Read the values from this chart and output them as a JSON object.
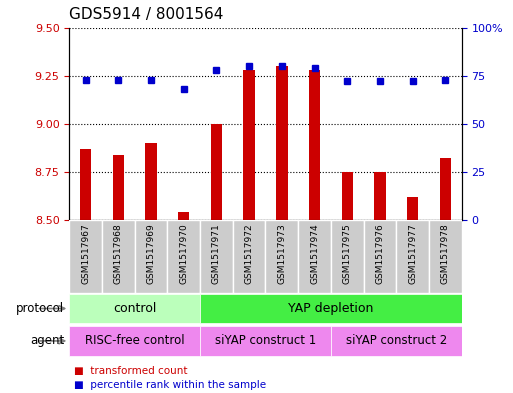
{
  "title": "GDS5914 / 8001564",
  "samples": [
    "GSM1517967",
    "GSM1517968",
    "GSM1517969",
    "GSM1517970",
    "GSM1517971",
    "GSM1517972",
    "GSM1517973",
    "GSM1517974",
    "GSM1517975",
    "GSM1517976",
    "GSM1517977",
    "GSM1517978"
  ],
  "red_values": [
    8.87,
    8.84,
    8.9,
    8.54,
    9.0,
    9.28,
    9.3,
    9.28,
    8.75,
    8.75,
    8.62,
    8.82
  ],
  "blue_values": [
    73,
    73,
    73,
    68,
    78,
    80,
    80,
    79,
    72,
    72,
    72,
    73
  ],
  "ylim_left": [
    8.5,
    9.5
  ],
  "ylim_right": [
    0,
    100
  ],
  "yticks_left": [
    8.5,
    8.75,
    9.0,
    9.25,
    9.5
  ],
  "yticks_right": [
    0,
    25,
    50,
    75,
    100
  ],
  "ytick_labels_right": [
    "0",
    "25",
    "50",
    "75",
    "100%"
  ],
  "bar_color": "#cc0000",
  "dot_color": "#0000cc",
  "bar_width": 0.35,
  "protocol_groups": [
    {
      "label": "control",
      "start": 0,
      "end": 3,
      "color": "#bbffbb"
    },
    {
      "label": "YAP depletion",
      "start": 4,
      "end": 11,
      "color": "#44ee44"
    }
  ],
  "agent_groups": [
    {
      "label": "RISC-free control",
      "start": 0,
      "end": 3,
      "color": "#ee88ee"
    },
    {
      "label": "siYAP construct 1",
      "start": 4,
      "end": 7,
      "color": "#ee88ee"
    },
    {
      "label": "siYAP construct 2",
      "start": 8,
      "end": 11,
      "color": "#ee88ee"
    }
  ],
  "protocol_label": "protocol",
  "agent_label": "agent",
  "legend_red": "transformed count",
  "legend_blue": "percentile rank within the sample",
  "background_color": "#ffffff",
  "tick_label_color_left": "#cc0000",
  "tick_label_color_right": "#0000cc",
  "plot_bg_color": "#ffffff",
  "box_bg_color": "#cccccc"
}
